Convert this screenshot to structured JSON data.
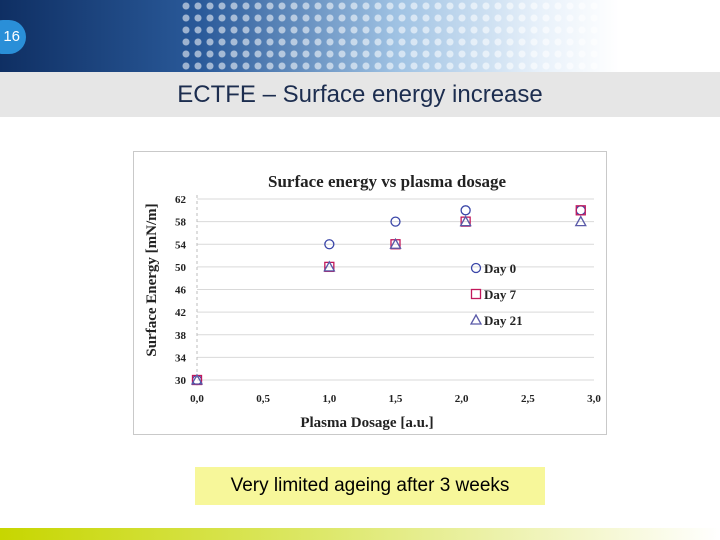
{
  "slide": {
    "page_number": "16",
    "title": "ECTFE – Surface energy increase",
    "caption": "Very limited ageing after 3 weeks"
  },
  "colors": {
    "header_dark": "#0f2f63",
    "accent_blue": "#2a8fd8",
    "caption_bg": "#f7f79a",
    "day0": "#3a46a8",
    "day7": "#c2185b",
    "day21": "#5a5aa8"
  },
  "chart_data": {
    "type": "scatter",
    "title": "Surface energy vs plasma dosage",
    "xlabel": "Plasma Dosage [a.u.]",
    "ylabel": "Surface Energy [mN/m]",
    "xlim": [
      0,
      3
    ],
    "ylim": [
      30,
      62
    ],
    "x_ticks": [
      "0,0",
      "0,5",
      "1,0",
      "1,5",
      "2,0",
      "2,5",
      "3,0"
    ],
    "x_tick_values": [
      0,
      0.5,
      1.0,
      1.5,
      2.0,
      2.5,
      3.0
    ],
    "y_ticks": [
      "30",
      "34",
      "38",
      "42",
      "46",
      "50",
      "54",
      "58",
      "62"
    ],
    "y_tick_values": [
      30,
      34,
      38,
      42,
      46,
      50,
      54,
      58,
      62
    ],
    "grid": "horizontal",
    "legend_position": "right",
    "series": [
      {
        "name": "Day 0",
        "marker": "circle",
        "color": "#3a46a8",
        "points": [
          [
            0.0,
            30
          ],
          [
            1.0,
            54
          ],
          [
            1.5,
            58
          ],
          [
            2.03,
            60
          ],
          [
            2.9,
            60
          ]
        ]
      },
      {
        "name": "Day 7",
        "marker": "square",
        "color": "#c2185b",
        "points": [
          [
            0.0,
            30
          ],
          [
            1.0,
            50
          ],
          [
            1.5,
            54
          ],
          [
            2.03,
            58
          ],
          [
            2.9,
            60
          ]
        ]
      },
      {
        "name": "Day 21",
        "marker": "triangle",
        "color": "#5a5aa8",
        "points": [
          [
            0.0,
            30
          ],
          [
            1.0,
            50
          ],
          [
            1.5,
            54
          ],
          [
            2.03,
            58
          ],
          [
            2.9,
            58
          ]
        ]
      }
    ]
  }
}
